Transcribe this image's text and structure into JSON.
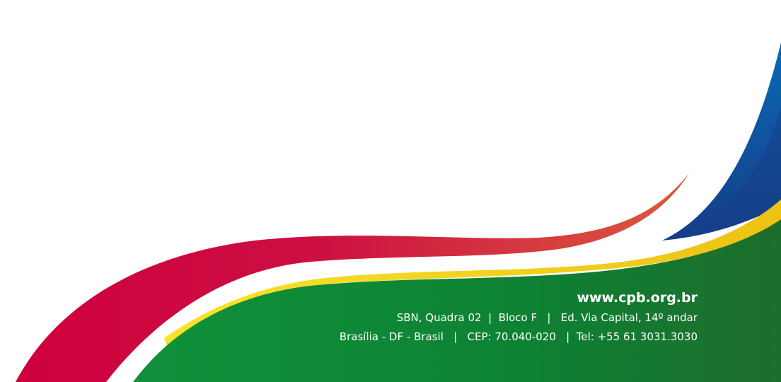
{
  "footer": {
    "website": "www.cpb.org.br",
    "address_line_1": "SBN, Quadra 02  |  Bloco F   |   Ed. Via Capital, 14º andar",
    "address_line_2": "Brasília - DF - Brasil   |   CEP: 70.040-020   |  Tel: +55 61 3031.3030"
  },
  "colors": {
    "green": "#0e8a3a",
    "green_dark": "#1e6f2c",
    "yellow": "#f3d21c",
    "red": "#cf0a41",
    "red_orange": "#d9553d",
    "blue": "#0b63b0",
    "blue_dark": "#143f8a",
    "background": "#ffffff"
  }
}
